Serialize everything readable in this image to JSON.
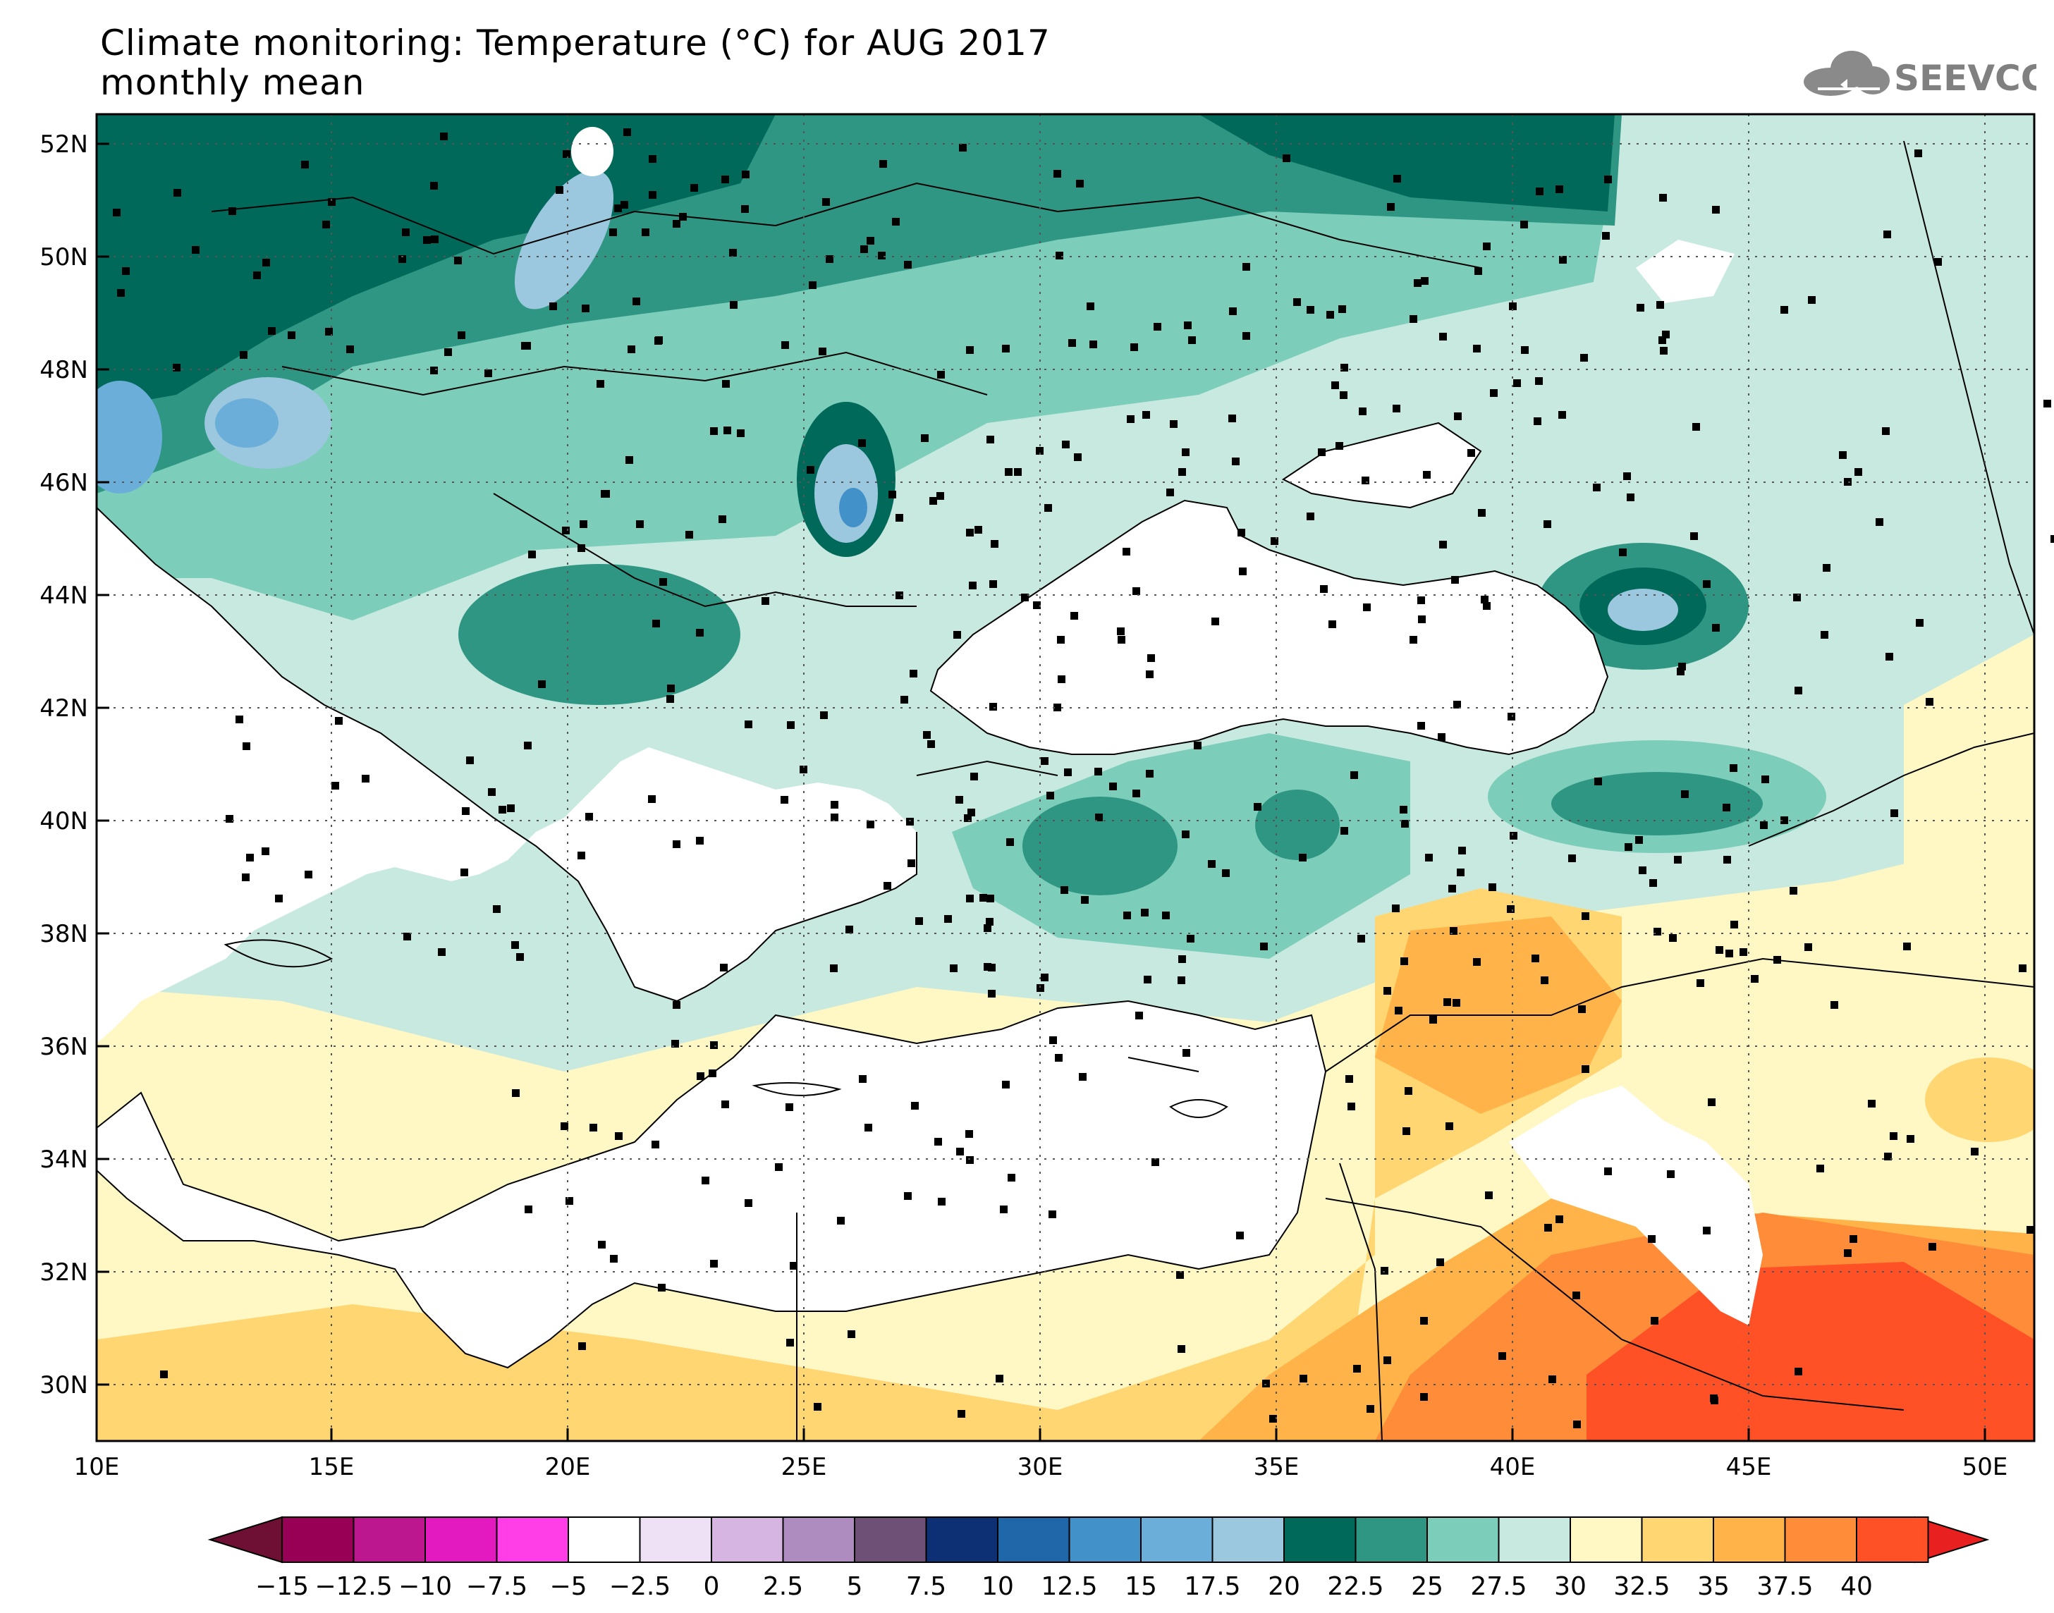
{
  "header": {
    "title": "Climate monitoring: Temperature (°C) for AUG 2017",
    "subtitle": "monthly mean",
    "logo_text": "SEEVCCC"
  },
  "map": {
    "lat_labels": [
      "52N",
      "50N",
      "48N",
      "46N",
      "44N",
      "42N",
      "40N",
      "38N",
      "36N",
      "34N",
      "32N",
      "30N"
    ],
    "lon_labels": [
      "10E",
      "15E",
      "20E",
      "25E",
      "30E",
      "35E",
      "40E",
      "45E",
      "50E"
    ]
  },
  "colorbar": {
    "labels": [
      "-15",
      "-12.5",
      "-10",
      "-7.5",
      "-5",
      "-2.5",
      "0",
      "2.5",
      "5",
      "7.5",
      "10",
      "12.5",
      "15",
      "17.5",
      "20",
      "22.5",
      "25",
      "27.5",
      "30",
      "32.5",
      "35",
      "37.5",
      "40"
    ],
    "colors": [
      "#980056",
      "#bd1790",
      "#e21ac0",
      "#ff3ee8",
      "#ffffff",
      "#efe1f5",
      "#d7b5e3",
      "#ae8cbf",
      "#6e5076",
      "#0d2f73",
      "#1f67a8",
      "#4291c9",
      "#6aaed9",
      "#9bc8df",
      "#00695a",
      "#2e9682",
      "#7ccdb9",
      "#c8e9df",
      "#fff8c4",
      "#ffd672",
      "#ffb349",
      "#ff8c38",
      "#ff5026"
    ],
    "under_color": "#6e0f34",
    "over_color": "#e82020"
  }
}
